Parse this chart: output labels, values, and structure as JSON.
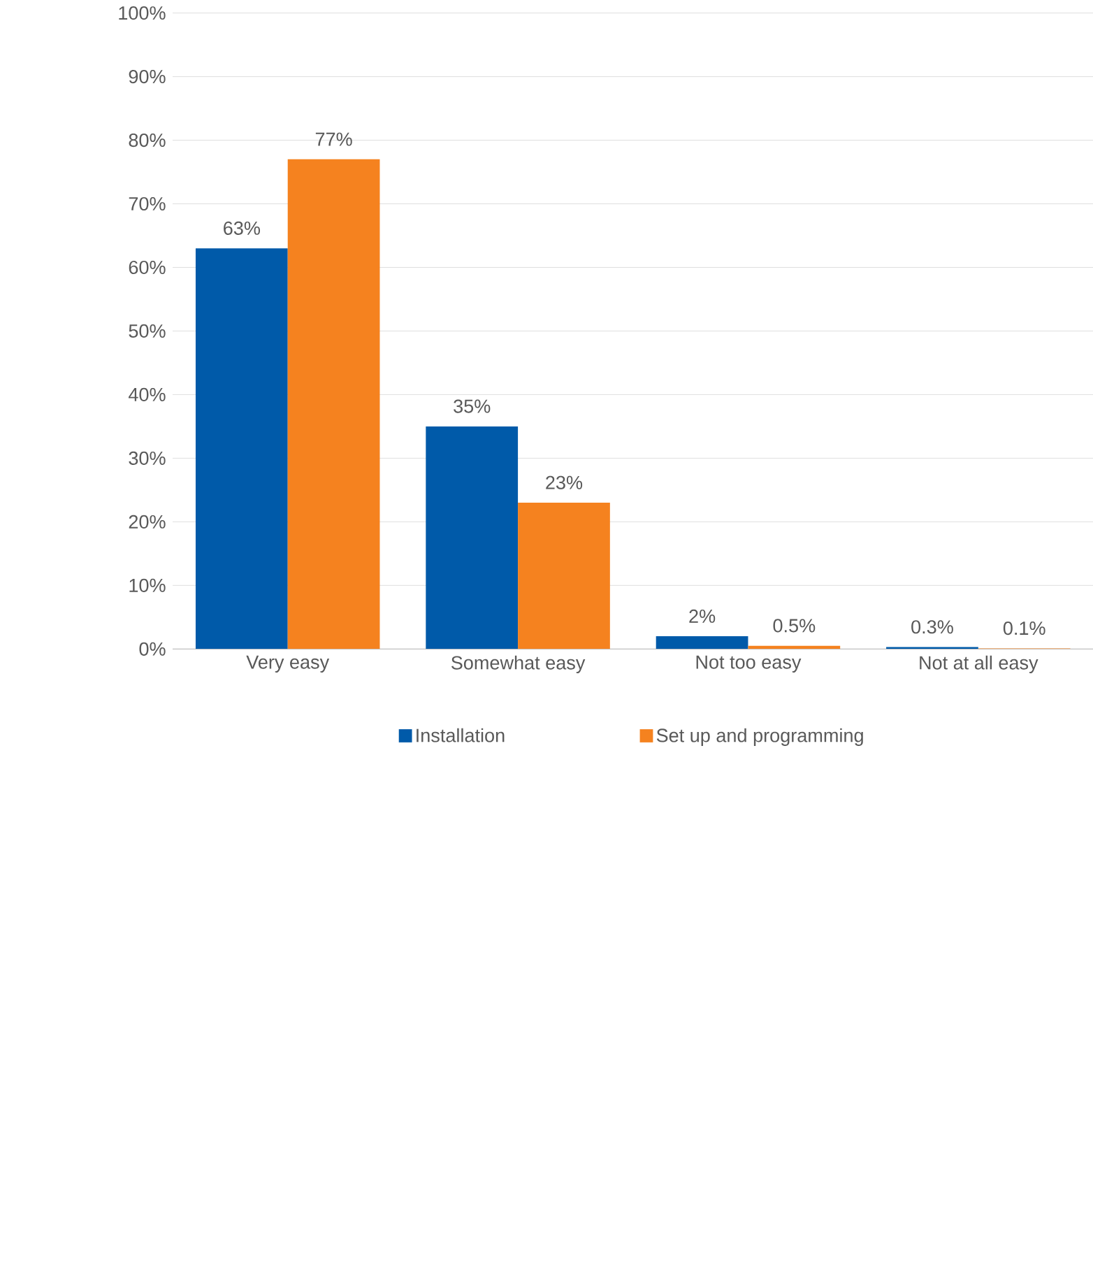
{
  "chart_data": {
    "type": "bar",
    "categories": [
      "Very easy",
      "Somewhat easy",
      "Not too easy",
      "Not at all easy"
    ],
    "series": [
      {
        "name": "Installation",
        "color": "#005aa9",
        "values": [
          63,
          35,
          2,
          0.3
        ],
        "value_labels": [
          "63%",
          "35%",
          "2%",
          "0.3%"
        ]
      },
      {
        "name": "Set up and programming",
        "color": "#f5821f",
        "values": [
          77,
          23,
          0.5,
          0.1
        ],
        "value_labels": [
          "77%",
          "23%",
          "0.5%",
          "0.1%"
        ]
      }
    ],
    "ylim": [
      0,
      100
    ],
    "yticks": [
      {
        "value": 0,
        "label": "0%"
      },
      {
        "value": 10,
        "label": "10%"
      },
      {
        "value": 20,
        "label": "20%"
      },
      {
        "value": 30,
        "label": "30%"
      },
      {
        "value": 40,
        "label": "40%"
      },
      {
        "value": 50,
        "label": "50%"
      },
      {
        "value": 60,
        "label": "60%"
      },
      {
        "value": 70,
        "label": "70%"
      },
      {
        "value": 80,
        "label": "80%"
      },
      {
        "value": 90,
        "label": "90%"
      },
      {
        "value": 100,
        "label": "100%"
      }
    ],
    "grid": "y",
    "legend": "bottom"
  }
}
